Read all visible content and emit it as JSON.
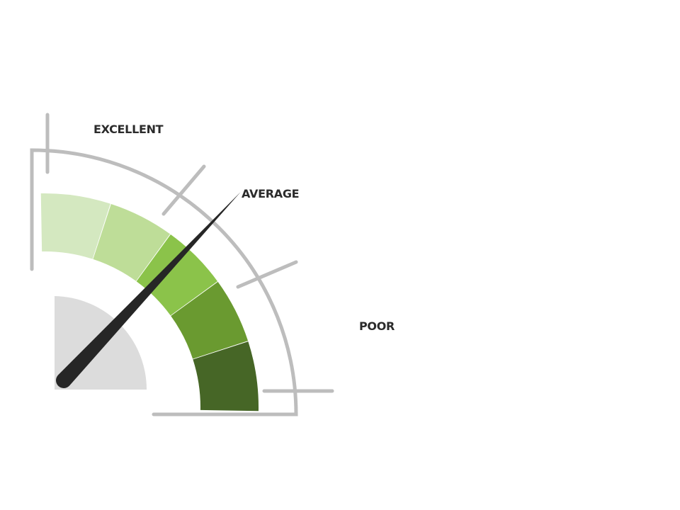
{
  "labels": {
    "excellent": "EXCELLENT",
    "average": "AVERAGE",
    "poor": "POOR"
  },
  "gauge": {
    "segment_colors": [
      "#d4e8c0",
      "#bedd98",
      "#8bc34a",
      "#6a9a30",
      "#466626"
    ],
    "frame_color": "#bdbdbd",
    "hub_color": "#dcdcdc",
    "needle_color": "#262626",
    "needle_fraction": 0.48
  }
}
